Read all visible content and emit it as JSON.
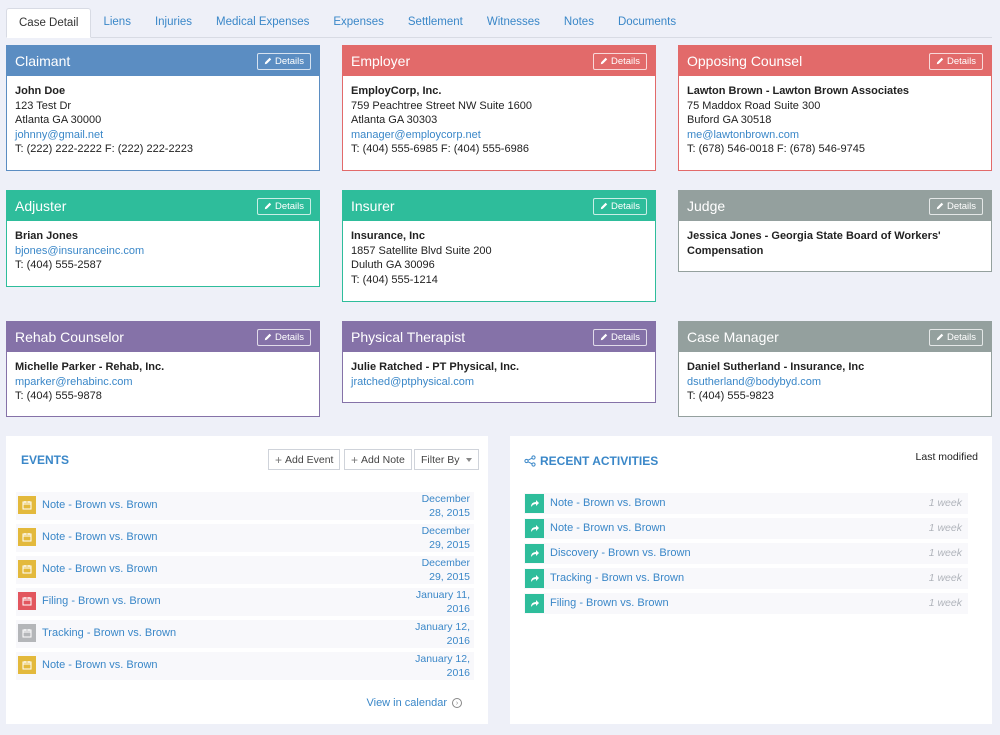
{
  "tabs": [
    "Case Detail",
    "Liens",
    "Injuries",
    "Medical Expenses",
    "Expenses",
    "Settlement",
    "Witnesses",
    "Notes",
    "Documents"
  ],
  "details_label": "Details",
  "cards": {
    "claimant": {
      "title": "Claimant",
      "name": "John Doe",
      "lines": [
        "123 Test Dr",
        "Atlanta GA 30000"
      ],
      "email": "johnny@gmail.net",
      "phone": "T: (222) 222-2222 F: (222) 222-2223"
    },
    "employer": {
      "title": "Employer",
      "name": "EmployCorp, Inc.",
      "lines": [
        "759 Peachtree Street NW Suite 1600",
        "Atlanta GA 30303"
      ],
      "email": "manager@employcorp.net",
      "phone": "T: (404) 555-6985 F: (404) 555-6986"
    },
    "opposing": {
      "title": "Opposing Counsel",
      "name": "Lawton Brown - Lawton Brown Associates",
      "lines": [
        "75 Maddox Road Suite 300",
        "Buford GA 30518"
      ],
      "email": "me@lawtonbrown.com",
      "phone": "T: (678) 546-0018 F: (678) 546-9745"
    },
    "adjuster": {
      "title": "Adjuster",
      "name": "Brian Jones",
      "email": "bjones@insuranceinc.com",
      "phone": "T: (404) 555-2587"
    },
    "insurer": {
      "title": "Insurer",
      "name": "Insurance, Inc",
      "lines": [
        "1857 Satellite Blvd Suite 200",
        "Duluth GA 30096"
      ],
      "phone": "T: (404) 555-1214"
    },
    "judge": {
      "title": "Judge",
      "name": "Jessica Jones - Georgia State Board of Workers' Compensation"
    },
    "rehab": {
      "title": "Rehab Counselor",
      "name": "Michelle Parker - Rehab, Inc.",
      "email": "mparker@rehabinc.com",
      "phone": "T: (404) 555-9878"
    },
    "therapist": {
      "title": "Physical Therapist",
      "name": "Julie Ratched - PT Physical, Inc.",
      "email": "jratched@ptphysical.com"
    },
    "casemanager": {
      "title": "Case Manager",
      "name": "Daniel Sutherland - Insurance, Inc",
      "email": "dsutherland@bodybyd.com",
      "phone": "T: (404) 555-9823"
    }
  },
  "events": {
    "title": "EVENTS",
    "add_event": "Add Event",
    "add_note": "Add Note",
    "filter_by": "Filter By",
    "view_calendar": "View in calendar",
    "items": [
      {
        "label": "Note - Brown vs. Brown",
        "date1": "December",
        "date2": "28, 2015",
        "color": "#e3b93c"
      },
      {
        "label": "Note - Brown vs. Brown",
        "date1": "December",
        "date2": "29, 2015",
        "color": "#e3b93c"
      },
      {
        "label": "Note - Brown vs. Brown",
        "date1": "December",
        "date2": "29, 2015",
        "color": "#e3b93c"
      },
      {
        "label": "Filing - Brown vs. Brown",
        "date1": "January 11,",
        "date2": "2016",
        "color": "#e2565e"
      },
      {
        "label": "Tracking - Brown vs. Brown",
        "date1": "January 12,",
        "date2": "2016",
        "color": "#b4b6b9"
      },
      {
        "label": "Note - Brown vs. Brown",
        "date1": "January 12,",
        "date2": "2016",
        "color": "#e3b93c"
      }
    ]
  },
  "activities": {
    "title": "RECENT ACTIVITIES",
    "last_modified": "Last modified",
    "items": [
      {
        "label": "Note - Brown vs. Brown",
        "time": "1 week"
      },
      {
        "label": "Note - Brown vs. Brown",
        "time": "1 week"
      },
      {
        "label": "Discovery - Brown vs. Brown",
        "time": "1 week"
      },
      {
        "label": "Tracking - Brown vs. Brown",
        "time": "1 week"
      },
      {
        "label": "Filing - Brown vs. Brown",
        "time": "1 week"
      }
    ]
  }
}
